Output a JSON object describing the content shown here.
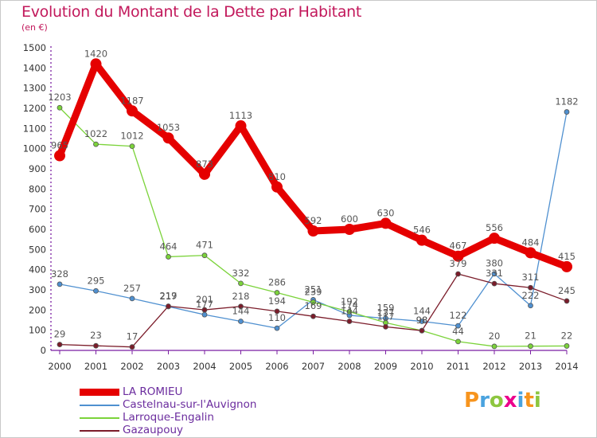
{
  "chart_data": {
    "type": "line",
    "title": "Evolution du Montant de la Dette par Habitant",
    "subtitle": "(en €)",
    "x": [
      "2000",
      "2001",
      "2002",
      "2003",
      "2004",
      "2005",
      "2006",
      "2007",
      "2008",
      "2009",
      "2010",
      "2011",
      "2012",
      "2013",
      "2014"
    ],
    "ylim": [
      0,
      1500
    ],
    "yticks": [
      "0",
      "100",
      "200",
      "300",
      "400",
      "500",
      "600",
      "700",
      "800",
      "900",
      "1000",
      "1100",
      "1200",
      "1300",
      "1400",
      "1500"
    ],
    "grid": false,
    "legend_position": "bottom-left",
    "series": [
      {
        "name": "LA ROMIEU",
        "color": "#e50000",
        "width": 9,
        "marker": 7,
        "values": [
          965,
          1420,
          1187,
          1053,
          873,
          1113,
          810,
          592,
          600,
          630,
          546,
          467,
          556,
          484,
          415
        ],
        "labels": [
          "965",
          "1420",
          "1187",
          "1053",
          "873",
          "1113",
          "810",
          "592",
          "600",
          "630",
          "546",
          "467",
          "556",
          "484",
          "415"
        ]
      },
      {
        "name": "Castelnau-sur-l'Auvignon",
        "color": "#4f90d0",
        "width": 1.3,
        "marker": 3,
        "values": [
          328,
          295,
          257,
          217,
          177,
          144,
          110,
          251,
          174,
          159,
          144,
          122,
          380,
          222,
          1182
        ],
        "labels": [
          "328",
          "295",
          "257",
          "217",
          "177",
          "144",
          "110",
          "251",
          "174",
          "159",
          "144",
          "122",
          "380",
          "222",
          "1182"
        ]
      },
      {
        "name": "Larroque-Engalin",
        "color": "#7bd33a",
        "width": 1.3,
        "marker": 3,
        "values": [
          1203,
          1022,
          1012,
          464,
          471,
          332,
          286,
          239,
          192,
          137,
          98,
          44,
          20,
          21,
          22
        ],
        "labels": [
          "1203",
          "1022",
          "1012",
          "464",
          "471",
          "332",
          "286",
          "239",
          "192",
          "137",
          "98",
          "44",
          "20",
          "21",
          "22"
        ]
      },
      {
        "name": "Gazaupouy",
        "color": "#7b1c2a",
        "width": 1.3,
        "marker": 3,
        "values": [
          29,
          23,
          17,
          219,
          201,
          218,
          194,
          169,
          144,
          117,
          98,
          379,
          331,
          311,
          245
        ],
        "labels": [
          "29",
          "23",
          "17",
          "219",
          "201",
          "218",
          "194",
          "169",
          "144",
          "117",
          "98",
          "379",
          "331",
          "311",
          "245"
        ]
      }
    ]
  },
  "legend": {
    "items": [
      {
        "label": "LA ROMIEU",
        "color": "#e50000",
        "thick": true
      },
      {
        "label": "Castelnau-sur-l'Auvignon",
        "color": "#4f90d0",
        "thick": false
      },
      {
        "label": "Larroque-Engalin",
        "color": "#7bd33a",
        "thick": false
      },
      {
        "label": "Gazaupouy",
        "color": "#7b1c2a",
        "thick": false
      }
    ]
  },
  "logo": {
    "letters": [
      "P",
      "r",
      "o",
      "x",
      "i",
      "t",
      "i"
    ],
    "colors": [
      "#f7941d",
      "#4aa3df",
      "#8dc63f",
      "#ec008c",
      "#4aa3df",
      "#f7941d",
      "#8dc63f"
    ]
  },
  "colors": {
    "title": "#c2185b",
    "axis": "#7b1fa2",
    "label": "#555555"
  }
}
